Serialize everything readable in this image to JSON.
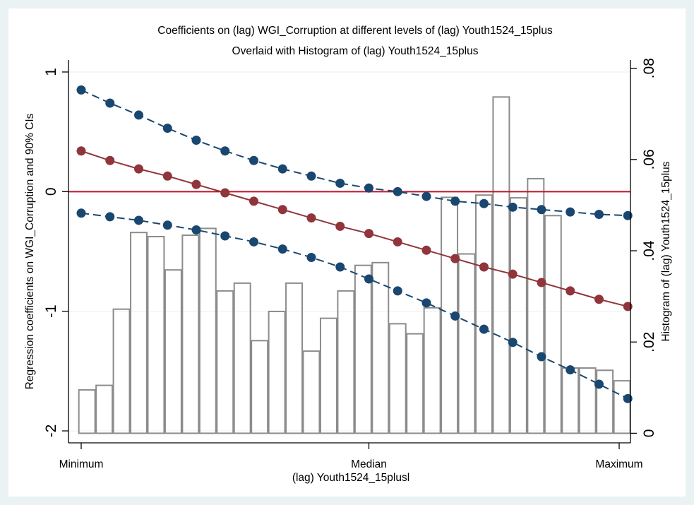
{
  "chart_data": {
    "type": "line",
    "title": "Coefficients on (lag) WGI_Corruption at different levels of (lag) Youth1524_15plus",
    "subtitle": "Overlaid with Histogram of (lag) Youth1524_15plus",
    "xlabel": "(lag) Youth1524_15plusl",
    "ylabel": "Regression coefficients on WGI_Corruption and 90% CIs",
    "y2label": "Histogram of (lag) Youth1524_15plus",
    "x_tick_labels": [
      "Minimum",
      "Median",
      "Maximum"
    ],
    "x_tick_positions": [
      0,
      10,
      18.7
    ],
    "xlim": [
      -0.3,
      19.3
    ],
    "ylim": [
      -2.1,
      1.1
    ],
    "y_ticks": [
      1,
      0,
      -1,
      -2
    ],
    "y_tick_labels": [
      "1",
      "0",
      "-1",
      "-2"
    ],
    "y2lim": [
      -0.0021,
      0.0818
    ],
    "y2_ticks": [
      0,
      0.02,
      0.04,
      0.06,
      0.08
    ],
    "y2_tick_labels": [
      "0",
      ".02",
      ".04",
      ".06",
      ".08"
    ],
    "grid": true,
    "reference_line": {
      "y": 0,
      "color": "#c0142b"
    },
    "x": [
      0,
      1,
      2,
      3,
      4,
      5,
      6,
      7,
      8,
      9,
      10,
      11,
      12,
      13,
      14,
      15,
      16,
      17,
      18,
      19
    ],
    "series": [
      {
        "role": "upper_ci",
        "color": "#1a476f",
        "style": "dashed",
        "values": [
          0.85,
          0.74,
          0.64,
          0.53,
          0.43,
          0.34,
          0.26,
          0.19,
          0.13,
          0.07,
          0.03,
          0.0,
          -0.04,
          -0.08,
          -0.1,
          -0.13,
          -0.15,
          -0.17,
          -0.19,
          -0.2
        ]
      },
      {
        "role": "estimate",
        "color": "#90353b",
        "style": "solid",
        "values": [
          0.34,
          0.26,
          0.19,
          0.13,
          0.06,
          -0.01,
          -0.08,
          -0.15,
          -0.22,
          -0.29,
          -0.35,
          -0.42,
          -0.49,
          -0.56,
          -0.63,
          -0.69,
          -0.76,
          -0.83,
          -0.9,
          -0.96
        ]
      },
      {
        "role": "lower_ci",
        "color": "#1a476f",
        "style": "dashed",
        "values": [
          -0.18,
          -0.21,
          -0.24,
          -0.28,
          -0.32,
          -0.37,
          -0.42,
          -0.48,
          -0.55,
          -0.63,
          -0.73,
          -0.83,
          -0.93,
          -1.04,
          -1.15,
          -1.26,
          -1.38,
          -1.49,
          -1.61,
          -1.73
        ]
      }
    ],
    "histogram": {
      "color": "#8c8c8c",
      "bins": [
        {
          "x0": -0.1,
          "x1": 0.5,
          "value": 0.0095
        },
        {
          "x0": 0.5,
          "x1": 1.1,
          "value": 0.0105
        },
        {
          "x0": 1.1,
          "x1": 1.7,
          "value": 0.0272
        },
        {
          "x0": 1.7,
          "x1": 2.3,
          "value": 0.044
        },
        {
          "x0": 2.3,
          "x1": 2.9,
          "value": 0.0431
        },
        {
          "x0": 2.9,
          "x1": 3.5,
          "value": 0.0358
        },
        {
          "x0": 3.5,
          "x1": 4.1,
          "value": 0.0434
        },
        {
          "x0": 4.1,
          "x1": 4.7,
          "value": 0.0449
        },
        {
          "x0": 4.7,
          "x1": 5.3,
          "value": 0.0312
        },
        {
          "x0": 5.3,
          "x1": 5.9,
          "value": 0.0329
        },
        {
          "x0": 5.9,
          "x1": 6.5,
          "value": 0.0203
        },
        {
          "x0": 6.5,
          "x1": 7.1,
          "value": 0.0267
        },
        {
          "x0": 7.1,
          "x1": 7.7,
          "value": 0.0329
        },
        {
          "x0": 7.7,
          "x1": 8.3,
          "value": 0.018
        },
        {
          "x0": 8.3,
          "x1": 8.9,
          "value": 0.0252
        },
        {
          "x0": 8.9,
          "x1": 9.5,
          "value": 0.0312
        },
        {
          "x0": 9.5,
          "x1": 10.1,
          "value": 0.0368
        },
        {
          "x0": 10.1,
          "x1": 10.7,
          "value": 0.0374
        },
        {
          "x0": 10.7,
          "x1": 11.3,
          "value": 0.024
        },
        {
          "x0": 11.3,
          "x1": 11.9,
          "value": 0.0218
        },
        {
          "x0": 11.9,
          "x1": 12.5,
          "value": 0.0275
        },
        {
          "x0": 12.5,
          "x1": 13.1,
          "value": 0.0517
        },
        {
          "x0": 13.1,
          "x1": 13.7,
          "value": 0.0393
        },
        {
          "x0": 13.7,
          "x1": 14.3,
          "value": 0.0522
        },
        {
          "x0": 14.3,
          "x1": 14.9,
          "value": 0.0737
        },
        {
          "x0": 14.9,
          "x1": 15.5,
          "value": 0.0516
        },
        {
          "x0": 15.5,
          "x1": 16.1,
          "value": 0.0558
        },
        {
          "x0": 16.1,
          "x1": 16.7,
          "value": 0.0477
        },
        {
          "x0": 16.7,
          "x1": 17.3,
          "value": 0.0143
        },
        {
          "x0": 17.3,
          "x1": 17.9,
          "value": 0.0143
        },
        {
          "x0": 17.9,
          "x1": 18.5,
          "value": 0.0138
        },
        {
          "x0": 18.5,
          "x1": 19.1,
          "value": 0.0115
        }
      ]
    }
  }
}
